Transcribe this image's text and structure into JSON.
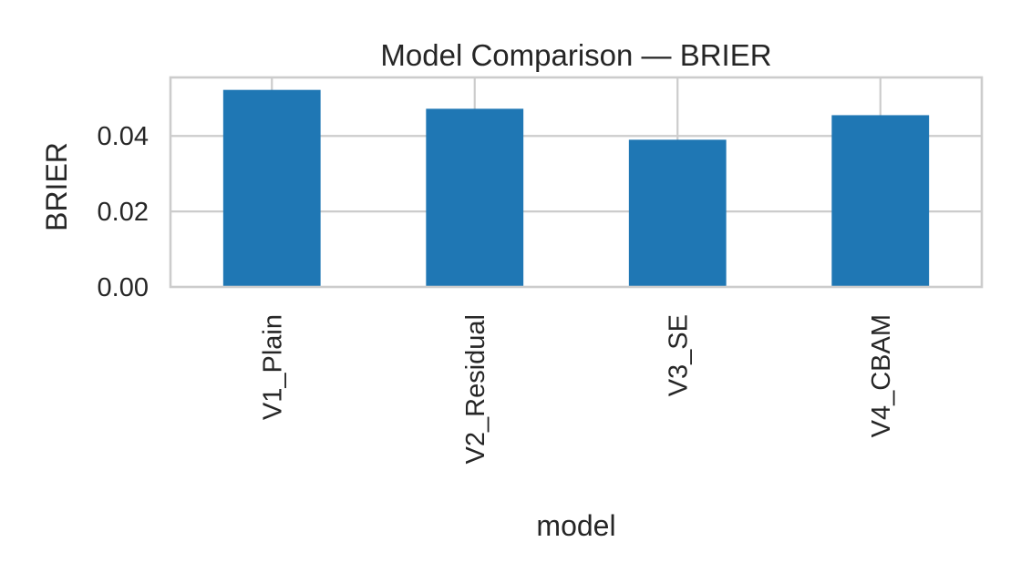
{
  "chart_data": {
    "type": "bar",
    "title": "Model Comparison — BRIER",
    "xlabel": "model",
    "ylabel": "BRIER",
    "categories": [
      "V1_Plain",
      "V2_Residual",
      "V3_SE",
      "V4_CBAM"
    ],
    "values": [
      0.0522,
      0.0472,
      0.039,
      0.0455
    ],
    "ylim": [
      0,
      0.0555
    ],
    "yticks": [
      0.0,
      0.02,
      0.04
    ],
    "ytick_labels": [
      "0.00",
      "0.02",
      "0.04"
    ],
    "grid": true,
    "legend": "none",
    "bar_color": "#1f77b4"
  }
}
